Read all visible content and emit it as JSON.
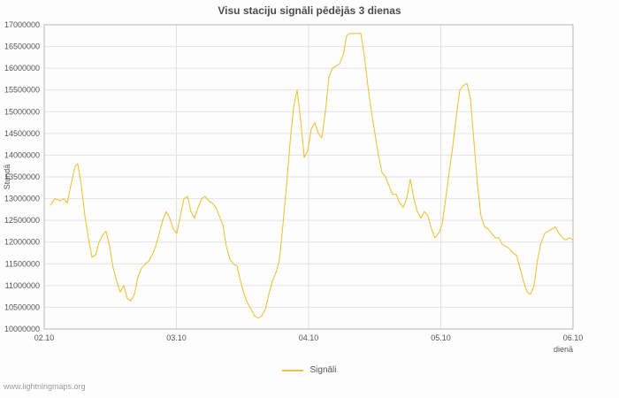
{
  "page": {
    "footer_link": "www.lightningmaps.org"
  },
  "chart_data": {
    "type": "line",
    "title": "Visu staciju signāli pēdējās 3 dienas",
    "xlabel": "dienā",
    "ylabel": "Stundā",
    "grid": true,
    "legend_position": "bottom-center",
    "xlim": [
      2,
      6
    ],
    "ylim": [
      10000000,
      17000000
    ],
    "y_tick_step": 500000,
    "x_ticks": [
      {
        "value": 2,
        "label": "02.10"
      },
      {
        "value": 3,
        "label": "03.10"
      },
      {
        "value": 4,
        "label": "04.10"
      },
      {
        "value": 5,
        "label": "05.10"
      },
      {
        "value": 6,
        "label": "06.10"
      }
    ],
    "colors": {
      "series": "#edc240",
      "grid": "#e2e2e2",
      "border": "#b6b6b6",
      "tick_text": "#545454",
      "title_text": "#4c4c4c",
      "footer_text": "#9b9b9b"
    },
    "series": [
      {
        "name": "Signāli",
        "color": "#edc240",
        "points": [
          [
            2.047,
            12850000
          ],
          [
            2.08,
            13000000
          ],
          [
            2.12,
            12950000
          ],
          [
            2.147,
            13000000
          ],
          [
            2.174,
            12900000
          ],
          [
            2.201,
            13300000
          ],
          [
            2.234,
            13750000
          ],
          [
            2.254,
            13800000
          ],
          [
            2.281,
            13300000
          ],
          [
            2.308,
            12600000
          ],
          [
            2.334,
            12100000
          ],
          [
            2.361,
            11650000
          ],
          [
            2.388,
            11700000
          ],
          [
            2.415,
            12000000
          ],
          [
            2.441,
            12150000
          ],
          [
            2.468,
            12250000
          ],
          [
            2.495,
            11900000
          ],
          [
            2.522,
            11400000
          ],
          [
            2.548,
            11100000
          ],
          [
            2.575,
            10850000
          ],
          [
            2.602,
            11000000
          ],
          [
            2.629,
            10700000
          ],
          [
            2.656,
            10650000
          ],
          [
            2.682,
            10800000
          ],
          [
            2.709,
            11200000
          ],
          [
            2.736,
            11400000
          ],
          [
            2.763,
            11500000
          ],
          [
            2.789,
            11550000
          ],
          [
            2.816,
            11700000
          ],
          [
            2.843,
            11900000
          ],
          [
            2.87,
            12200000
          ],
          [
            2.896,
            12500000
          ],
          [
            2.923,
            12700000
          ],
          [
            2.95,
            12550000
          ],
          [
            2.977,
            12300000
          ],
          [
            3.003,
            12200000
          ],
          [
            3.03,
            12600000
          ],
          [
            3.057,
            13000000
          ],
          [
            3.084,
            13050000
          ],
          [
            3.11,
            12700000
          ],
          [
            3.137,
            12550000
          ],
          [
            3.164,
            12800000
          ],
          [
            3.191,
            13000000
          ],
          [
            3.217,
            13050000
          ],
          [
            3.244,
            12950000
          ],
          [
            3.271,
            12900000
          ],
          [
            3.298,
            12800000
          ],
          [
            3.324,
            12600000
          ],
          [
            3.351,
            12400000
          ],
          [
            3.378,
            11900000
          ],
          [
            3.405,
            11600000
          ],
          [
            3.431,
            11500000
          ],
          [
            3.458,
            11450000
          ],
          [
            3.485,
            11100000
          ],
          [
            3.512,
            10800000
          ],
          [
            3.538,
            10600000
          ],
          [
            3.565,
            10450000
          ],
          [
            3.592,
            10300000
          ],
          [
            3.619,
            10250000
          ],
          [
            3.645,
            10300000
          ],
          [
            3.672,
            10450000
          ],
          [
            3.699,
            10800000
          ],
          [
            3.726,
            11100000
          ],
          [
            3.753,
            11300000
          ],
          [
            3.779,
            11600000
          ],
          [
            3.806,
            12400000
          ],
          [
            3.833,
            13300000
          ],
          [
            3.86,
            14300000
          ],
          [
            3.886,
            15100000
          ],
          [
            3.913,
            15500000
          ],
          [
            3.94,
            14800000
          ],
          [
            3.967,
            13950000
          ],
          [
            3.993,
            14100000
          ],
          [
            4.02,
            14600000
          ],
          [
            4.047,
            14750000
          ],
          [
            4.074,
            14500000
          ],
          [
            4.1,
            14400000
          ],
          [
            4.127,
            15000000
          ],
          [
            4.154,
            15800000
          ],
          [
            4.181,
            16000000
          ],
          [
            4.207,
            16050000
          ],
          [
            4.234,
            16100000
          ],
          [
            4.261,
            16300000
          ],
          [
            4.288,
            16750000
          ],
          [
            4.314,
            16800000
          ],
          [
            4.341,
            16800000
          ],
          [
            4.368,
            16800000
          ],
          [
            4.395,
            16800000
          ],
          [
            4.421,
            16300000
          ],
          [
            4.448,
            15600000
          ],
          [
            4.475,
            15000000
          ],
          [
            4.502,
            14500000
          ],
          [
            4.528,
            14000000
          ],
          [
            4.555,
            13600000
          ],
          [
            4.582,
            13500000
          ],
          [
            4.609,
            13300000
          ],
          [
            4.635,
            13100000
          ],
          [
            4.662,
            13100000
          ],
          [
            4.689,
            12900000
          ],
          [
            4.716,
            12800000
          ],
          [
            4.742,
            13000000
          ],
          [
            4.769,
            13450000
          ],
          [
            4.796,
            13000000
          ],
          [
            4.823,
            12700000
          ],
          [
            4.849,
            12550000
          ],
          [
            4.876,
            12700000
          ],
          [
            4.903,
            12600000
          ],
          [
            4.93,
            12300000
          ],
          [
            4.956,
            12100000
          ],
          [
            4.983,
            12200000
          ],
          [
            5.01,
            12400000
          ],
          [
            5.037,
            13000000
          ],
          [
            5.063,
            13600000
          ],
          [
            5.09,
            14200000
          ],
          [
            5.117,
            14900000
          ],
          [
            5.144,
            15500000
          ],
          [
            5.171,
            15600000
          ],
          [
            5.197,
            15650000
          ],
          [
            5.224,
            15300000
          ],
          [
            5.251,
            14300000
          ],
          [
            5.278,
            13300000
          ],
          [
            5.304,
            12600000
          ],
          [
            5.331,
            12350000
          ],
          [
            5.358,
            12300000
          ],
          [
            5.385,
            12200000
          ],
          [
            5.411,
            12100000
          ],
          [
            5.438,
            12100000
          ],
          [
            5.465,
            11950000
          ],
          [
            5.492,
            11900000
          ],
          [
            5.518,
            11850000
          ],
          [
            5.545,
            11750000
          ],
          [
            5.572,
            11700000
          ],
          [
            5.599,
            11400000
          ],
          [
            5.625,
            11100000
          ],
          [
            5.652,
            10850000
          ],
          [
            5.679,
            10800000
          ],
          [
            5.706,
            11000000
          ],
          [
            5.732,
            11600000
          ],
          [
            5.759,
            12000000
          ],
          [
            5.786,
            12200000
          ],
          [
            5.813,
            12250000
          ],
          [
            5.839,
            12300000
          ],
          [
            5.866,
            12350000
          ],
          [
            5.893,
            12200000
          ],
          [
            5.92,
            12100000
          ],
          [
            5.946,
            12050000
          ],
          [
            5.973,
            12100000
          ],
          [
            6.0,
            12050000
          ]
        ]
      }
    ]
  }
}
